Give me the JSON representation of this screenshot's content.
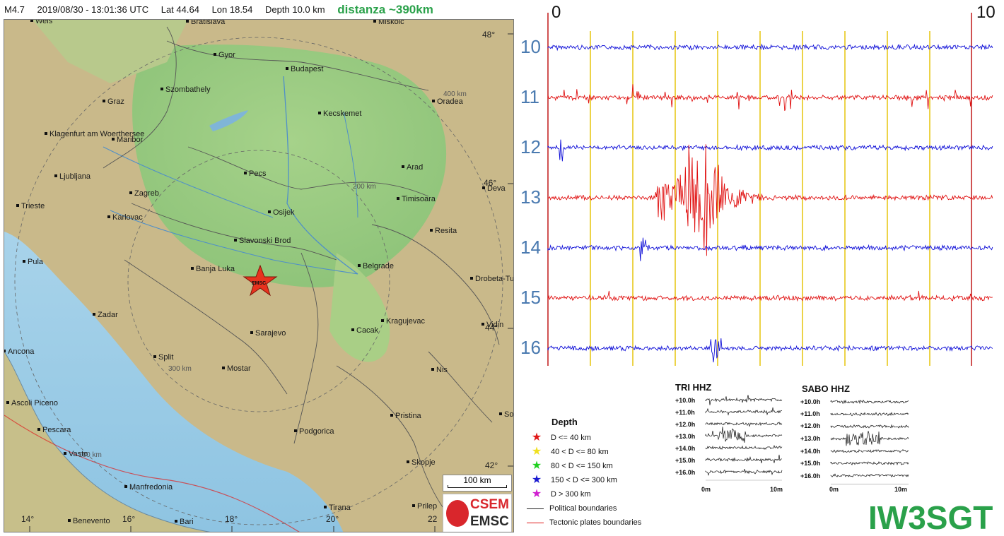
{
  "header": {
    "magnitude": "M4.7",
    "datetime": "2019/08/30 - 13:01:36 UTC",
    "lat": "Lat 44.64",
    "lon": "Lon 18.54",
    "depth": "Depth  10.0 km",
    "distance": "distanza ~390km"
  },
  "map": {
    "cities": [
      "Wels",
      "Bratislava",
      "Miskolc",
      "Gyor",
      "Budapest",
      "Szombathely",
      "Graz",
      "Oradea",
      "Kecskemet",
      "Klagenfurt am Woerthersee",
      "Maribor",
      "Ljubljana",
      "Pecs",
      "Arad",
      "Zagreb",
      "Deva",
      "Timisoara",
      "Trieste",
      "Karlovac",
      "Osijek",
      "Resita",
      "Slavonski Brod",
      "Pula",
      "Banja Luka",
      "Belgrade",
      "Drobeta-Tu",
      "Zadar",
      "Kragujevac",
      "Cacak",
      "Vidin",
      "Sarajevo",
      "Ancona",
      "Split",
      "Mostar",
      "Nis",
      "Ascoli Piceno",
      "So",
      "Pristina",
      "Pescara",
      "Podgorica",
      "Vasto",
      "Skopje",
      "Manfredonia",
      "Tirana",
      "Prilep",
      "Benevento",
      "Bari"
    ],
    "lat_labels": [
      "48°",
      "46°",
      "44°",
      "42°"
    ],
    "lon_labels": [
      "14°",
      "16°",
      "18°",
      "20°",
      "22"
    ],
    "ring_labels": [
      "400 km",
      "200 km",
      "300 km",
      "100 km"
    ],
    "epicenter_label": "EMSC",
    "scale_label": "100 km",
    "logo_top": "CSEM",
    "logo_bottom": "EMSC"
  },
  "drum": {
    "scale_start": "0",
    "scale_end": "10",
    "hours": [
      "10",
      "11",
      "12",
      "13",
      "14",
      "15",
      "16"
    ],
    "colors": {
      "blue": "#1010d8",
      "red": "#e01010",
      "minute_lines": "#e8c81a"
    }
  },
  "legend": {
    "title": "Depth",
    "items": [
      {
        "label": "D <= 40 km",
        "color": "#e01818"
      },
      {
        "label": "40 < D <= 80 km",
        "color": "#f0e020"
      },
      {
        "label": "80 < D <= 150 km",
        "color": "#20d020"
      },
      {
        "label": "150 < D <= 300 km",
        "color": "#1a1ad0"
      },
      {
        "label": "D > 300 km",
        "color": "#d020d0"
      }
    ],
    "political": "Political boundaries",
    "tectonic": "Tectonic plates boundaries"
  },
  "thumbs": [
    {
      "title": "TRI HHZ",
      "hours": [
        "+10.0h",
        "+11.0h",
        "+12.0h",
        "+13.0h",
        "+14.0h",
        "+15.0h",
        "+16.0h"
      ],
      "x_start": "0m",
      "x_end": "10m"
    },
    {
      "title": "SABO HHZ",
      "hours": [
        "+10.0h",
        "+11.0h",
        "+12.0h",
        "+13.0h",
        "+14.0h",
        "+15.0h",
        "+16.0h"
      ],
      "x_start": "0m",
      "x_end": "10m"
    }
  ],
  "signature": "IW3SGT"
}
